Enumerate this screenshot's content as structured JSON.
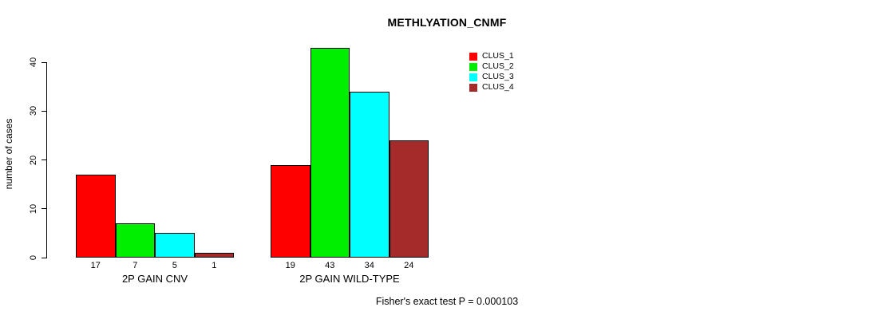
{
  "title": "METHLYATION_CNMF",
  "y_axis": {
    "label": "number of cases",
    "ticks": [
      0,
      10,
      20,
      30,
      40
    ]
  },
  "footer": "Fisher's exact test P = 0.000103",
  "legend": {
    "items": [
      {
        "label": "CLUS_1",
        "color": "#ff0000"
      },
      {
        "label": "CLUS_2",
        "color": "#00ee00"
      },
      {
        "label": "CLUS_3",
        "color": "#00ffff"
      },
      {
        "label": "CLUS_4",
        "color": "#a52a2a"
      }
    ]
  },
  "chart_data": {
    "type": "bar",
    "title": "METHLYATION_CNMF",
    "categories": [
      "2P GAIN CNV",
      "2P GAIN WILD-TYPE"
    ],
    "series": [
      {
        "name": "CLUS_1",
        "color": "#ff0000",
        "values": [
          17,
          19
        ]
      },
      {
        "name": "CLUS_2",
        "color": "#00ee00",
        "values": [
          7,
          43
        ]
      },
      {
        "name": "CLUS_3",
        "color": "#00ffff",
        "values": [
          5,
          34
        ]
      },
      {
        "name": "CLUS_4",
        "color": "#a52a2a",
        "values": [
          1,
          24
        ]
      }
    ],
    "xlabel": "",
    "ylabel": "number of cases",
    "yticks": [
      0,
      10,
      20,
      30,
      40
    ],
    "ylim": [
      0,
      44
    ],
    "grid": false,
    "bar_value_labels": true,
    "legend_position": "top-right",
    "annotation": "Fisher's exact test P = 0.000103"
  }
}
